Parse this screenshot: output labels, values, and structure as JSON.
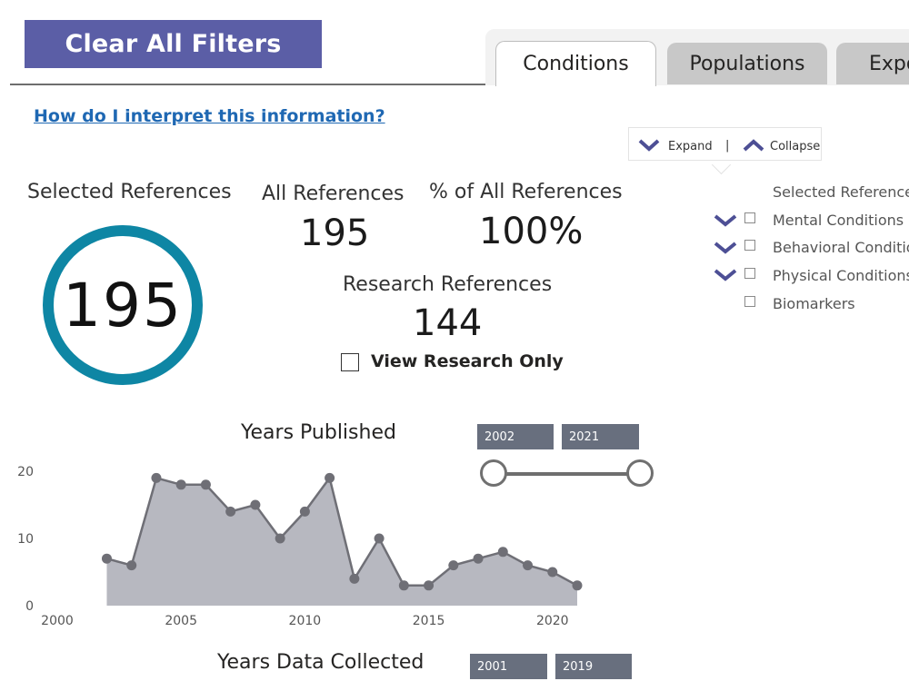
{
  "clear_filters": "Clear All Filters",
  "tabs": [
    {
      "label": "Conditions",
      "active": true
    },
    {
      "label": "Populations",
      "active": false
    },
    {
      "label": "Expo",
      "active": false
    }
  ],
  "help_link": "How do I interpret this information?",
  "expand_collapse": {
    "expand": "Expand",
    "separator": "|",
    "collapse": "Collapse"
  },
  "tree": {
    "header": "Selected References",
    "items": [
      {
        "label": "Mental Conditions",
        "expandable": true
      },
      {
        "label": "Behavioral Conditions",
        "expandable": true
      },
      {
        "label": "Physical Conditions",
        "expandable": true
      },
      {
        "label": "Biomarkers",
        "expandable": false
      }
    ]
  },
  "kpis": {
    "selected_label": "Selected References",
    "selected_value": "195",
    "all_label": "All References",
    "all_value": "195",
    "pct_label": "% of All References",
    "pct_value": "100%",
    "research_label": "Research References",
    "research_value": "144",
    "research_only_label": "View Research Only"
  },
  "years_published": {
    "title": "Years Published",
    "range_start": "2002",
    "range_end": "2021"
  },
  "years_collected": {
    "title": "Years Data Collected",
    "range_start": "2001",
    "range_end": "2019"
  },
  "colors": {
    "accent": "#5b5ea6",
    "ring": "#0e86a4",
    "area": "#b7b8c0",
    "line": "#6f6f76",
    "link": "#1f68b3"
  },
  "chart_data": {
    "type": "area",
    "title": "Years Published",
    "x": [
      2002,
      2003,
      2004,
      2005,
      2006,
      2007,
      2008,
      2009,
      2010,
      2011,
      2012,
      2013,
      2014,
      2015,
      2016,
      2017,
      2018,
      2019,
      2020,
      2021
    ],
    "series": [
      {
        "values": [
          7,
          6,
          19,
          18,
          18,
          14,
          15,
          10,
          14,
          19,
          4,
          10,
          3,
          3,
          6,
          7,
          8,
          6,
          5,
          3
        ]
      }
    ],
    "xticks": [
      "2000",
      "2005",
      "2010",
      "2015",
      "2020"
    ],
    "yticks": [
      "0",
      "10",
      "20"
    ],
    "xlim": [
      2000,
      2021
    ],
    "ylim": [
      0,
      20
    ],
    "grid": false
  }
}
